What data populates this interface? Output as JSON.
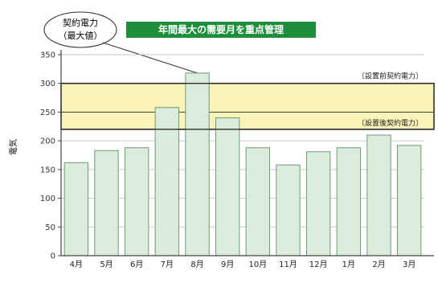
{
  "chart_data": {
    "type": "bar",
    "title": "年間最大の需要月を重点管理",
    "categories": [
      "4月",
      "5月",
      "6月",
      "7月",
      "8月",
      "9月",
      "10月",
      "11月",
      "12月",
      "1月",
      "2月",
      "3月"
    ],
    "values": [
      162,
      183,
      188,
      258,
      318,
      240,
      188,
      158,
      181,
      188,
      210,
      192
    ],
    "ylabel": "電気",
    "ylim": [
      0,
      350
    ],
    "yticks": [
      0,
      50,
      100,
      150,
      200,
      250,
      300,
      350
    ],
    "grid": true,
    "band": {
      "from": 220,
      "to": 300,
      "before_label": "〔設置前契約電力〕",
      "after_label": "〔設置後契約電力〕",
      "before_value": 300,
      "after_value": 220,
      "mid_value": 250
    },
    "callout": {
      "line1": "契約電力",
      "line2": "（最大値）",
      "target_category": "8月"
    }
  },
  "colors": {
    "bar_fill": "#dcecdc",
    "bar_stroke": "#6f9a73",
    "band_fill": "#fbf4b8",
    "band_stroke": "#2d2d2d",
    "title_bg": "#1d8f3c",
    "title_text": "#ffffff",
    "grid": "#c9c9c9",
    "axis": "#444444"
  }
}
